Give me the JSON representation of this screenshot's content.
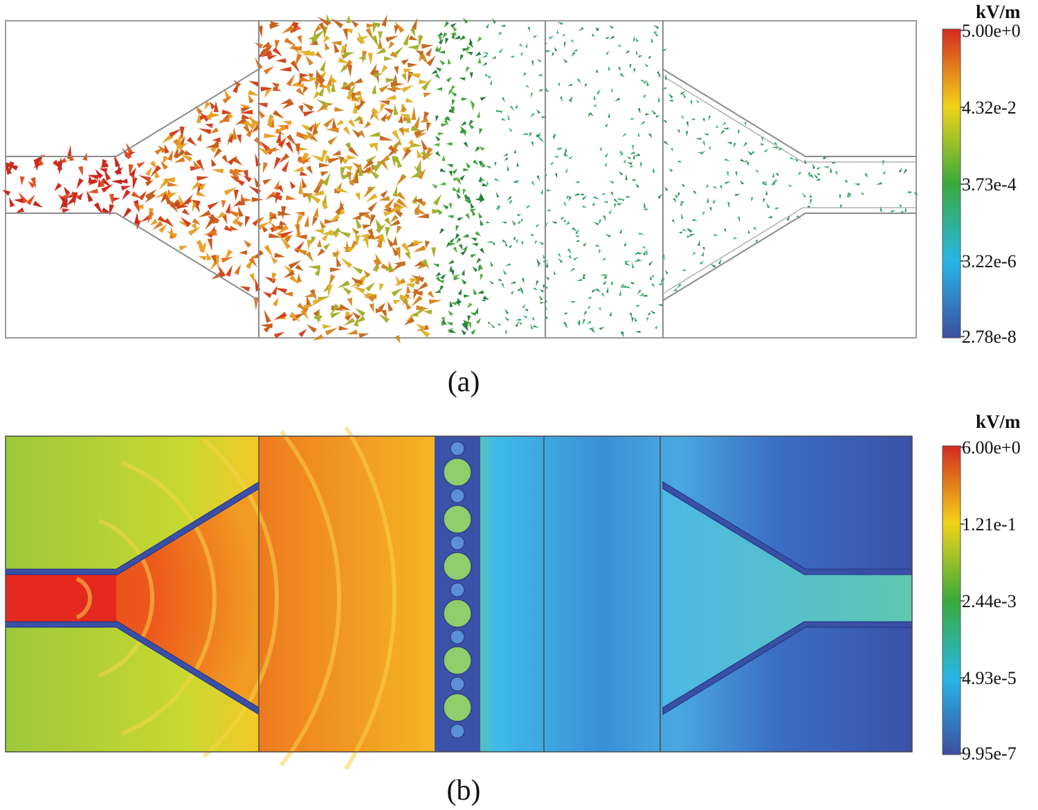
{
  "figure": {
    "panels": [
      {
        "id": "a",
        "caption": "(a)",
        "kind": "field-arrow-plot",
        "colorbar": {
          "unit": "kV/m",
          "ticks": [
            "5.00e+0",
            "4.32e-2",
            "3.73e-4",
            "3.22e-6",
            "2.78e-8"
          ],
          "colors": [
            "#d42a1f",
            "#f2d21a",
            "#3aaa3a",
            "#28b6e6",
            "#3a4f9f"
          ]
        }
      },
      {
        "id": "b",
        "caption": "(b)",
        "kind": "field-magnitude-map",
        "colorbar": {
          "unit": "kV/m",
          "ticks": [
            "6.00e+0",
            "1.21e-1",
            "2.44e-3",
            "4.93e-5",
            "9.95e-7"
          ],
          "colors": [
            "#d42a1f",
            "#f2d21a",
            "#3aaa3a",
            "#28b6e6",
            "#3a4f9f"
          ]
        }
      }
    ]
  }
}
